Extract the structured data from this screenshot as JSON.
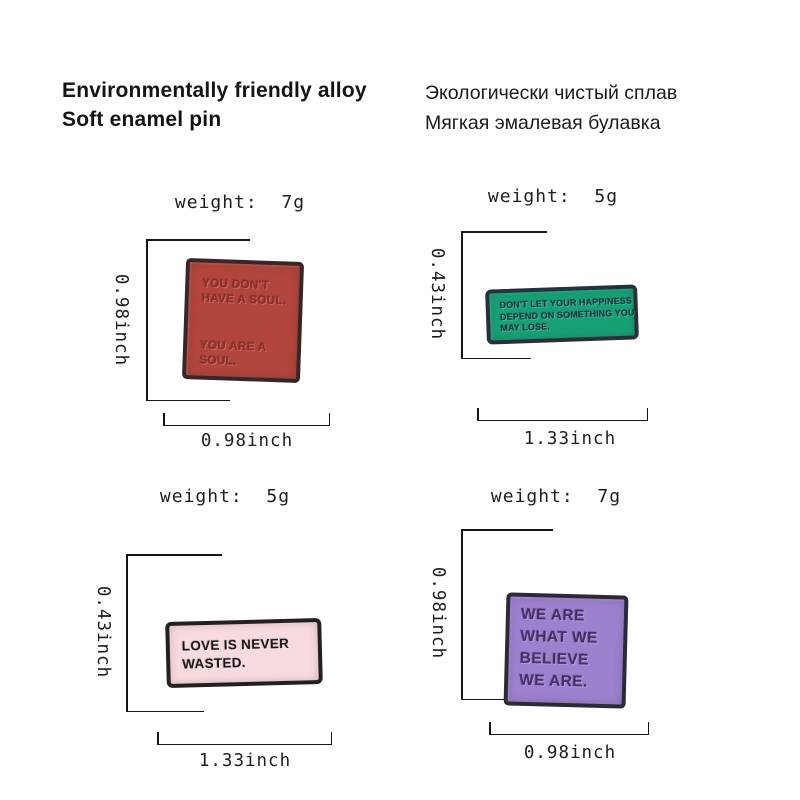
{
  "page": {
    "background": "#ffffff",
    "line_color": "#161616"
  },
  "header": {
    "en_line1": "Environmentally friendly alloy",
    "en_line2": "Soft enamel pin",
    "ru_line1": "Экологически чистый сплав",
    "ru_line2": "Мягкая эмалевая булавка"
  },
  "pins": [
    {
      "name": "red-square-soul-pin",
      "weight": "weight:  7g",
      "height": "0.98inch",
      "width": "0.98inch",
      "lines": [
        "YOU DON'T",
        "HAVE A SOUL.",
        "YOU ARE A",
        "SOUL."
      ],
      "fill": "#b2453c",
      "border": "#35272a",
      "text_color": "#8c2d26"
    },
    {
      "name": "green-rect-happiness-pin",
      "weight": "weight:  5g",
      "height": "0.43inch",
      "width": "1.33inch",
      "lines": [
        "DON'T LET YOUR HAPPINESS",
        "DEPEND ON SOMETHING YOU",
        "MAY LOSE."
      ],
      "fill": "#17a176",
      "border": "#25313b",
      "text_color": "#14323e"
    },
    {
      "name": "pink-rect-love-pin",
      "weight": "weight:  5g",
      "height": "0.43inch",
      "width": "1.33inch",
      "lines": [
        "LOVE IS NEVER",
        "WASTED."
      ],
      "fill": "#f8dbdf",
      "border": "#241f21",
      "text_color": "#1c191a"
    },
    {
      "name": "purple-square-believe-pin",
      "weight": "weight:  7g",
      "height": "0.98inch",
      "width": "0.98inch",
      "lines": [
        "WE ARE",
        "WHAT WE",
        "BELIEVE",
        "WE ARE."
      ],
      "fill": "#9c81ce",
      "border": "#2e2937",
      "text_color": "#452f69"
    }
  ]
}
